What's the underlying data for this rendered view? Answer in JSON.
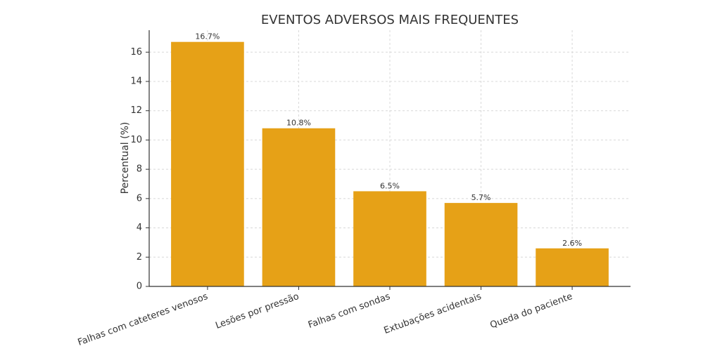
{
  "chart_data": {
    "type": "bar",
    "title": "EVENTOS ADVERSOS MAIS FREQUENTES",
    "ylabel": "Percentual (%)",
    "categories": [
      "Falhas com cateteres venosos",
      "Lesões por pressão",
      "Falhas com sondas",
      "Extubações acidentais",
      "Queda do paciente"
    ],
    "values": [
      16.7,
      10.8,
      6.5,
      5.7,
      2.6
    ],
    "value_labels": [
      "16.7%",
      "10.8%",
      "6.5%",
      "5.7%",
      "2.6%"
    ],
    "color": "#e6a117",
    "ylim": [
      0,
      17.5
    ],
    "yticks": [
      0,
      2,
      4,
      6,
      8,
      10,
      12,
      14,
      16
    ],
    "grid": true
  }
}
